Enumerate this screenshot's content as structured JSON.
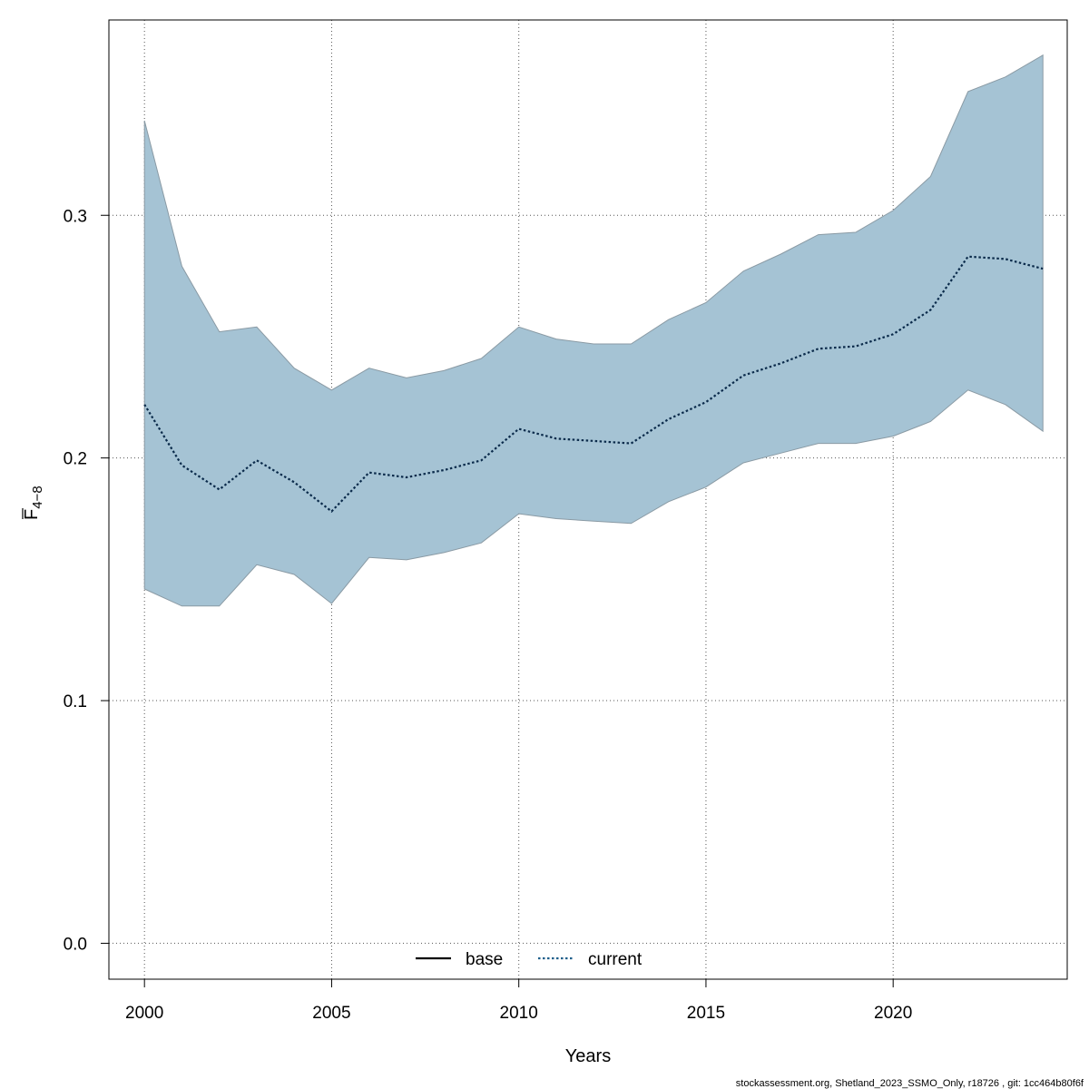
{
  "chart_data": {
    "type": "area",
    "xlabel": "Years",
    "ylabel_main": "F",
    "ylabel_sub": "4−8",
    "xlim": [
      1999.05,
      2024.65
    ],
    "ylim": [
      -0.0148,
      0.3805
    ],
    "x_ticks": [
      2000,
      2005,
      2010,
      2015,
      2020
    ],
    "y_ticks": [
      0.0,
      0.1,
      0.2,
      0.3
    ],
    "y_tick_labels": [
      "0.0",
      "0.1",
      "0.2",
      "0.3"
    ],
    "grid": true,
    "band_color": "#a5c3d4",
    "band_edge_color": "#8a9aa4",
    "x": [
      2000,
      2001,
      2002,
      2003,
      2004,
      2005,
      2006,
      2007,
      2008,
      2009,
      2010,
      2011,
      2012,
      2013,
      2014,
      2015,
      2016,
      2017,
      2018,
      2019,
      2020,
      2021,
      2022,
      2023,
      2024
    ],
    "series": [
      {
        "name": "current",
        "style": "dotted",
        "color": "#0a2a4a",
        "values": [
          0.222,
          0.197,
          0.187,
          0.199,
          0.19,
          0.178,
          0.194,
          0.192,
          0.195,
          0.199,
          0.212,
          0.208,
          0.207,
          0.206,
          0.216,
          0.223,
          0.234,
          0.239,
          0.245,
          0.246,
          0.251,
          0.261,
          0.283,
          0.282,
          0.278
        ]
      }
    ],
    "band": {
      "lower": [
        0.146,
        0.139,
        0.139,
        0.156,
        0.152,
        0.14,
        0.159,
        0.158,
        0.161,
        0.165,
        0.177,
        0.175,
        0.174,
        0.173,
        0.182,
        0.188,
        0.198,
        0.202,
        0.206,
        0.206,
        0.209,
        0.215,
        0.228,
        0.222,
        0.211
      ],
      "upper": [
        0.339,
        0.279,
        0.252,
        0.254,
        0.237,
        0.228,
        0.237,
        0.233,
        0.236,
        0.241,
        0.254,
        0.249,
        0.247,
        0.247,
        0.257,
        0.264,
        0.277,
        0.284,
        0.292,
        0.293,
        0.302,
        0.316,
        0.351,
        0.357,
        0.366
      ]
    },
    "legend": {
      "placement": "bottom",
      "items": [
        {
          "label": "base",
          "style": "solid",
          "color": "#000000"
        },
        {
          "label": "current",
          "style": "dotted",
          "color": "#1f5f8b"
        }
      ]
    }
  },
  "footer": {
    "note": "stockassessment.org, Shetland_2023_SSMO_Only, r18726 , git: 1cc464b80f6f"
  }
}
